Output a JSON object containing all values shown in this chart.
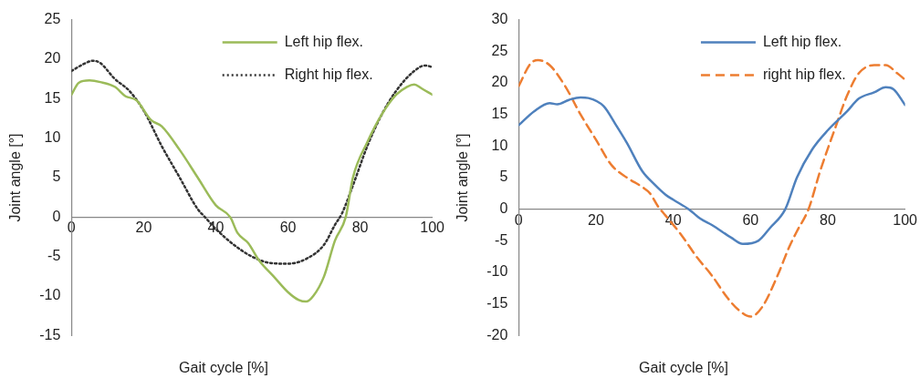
{
  "chart_data": [
    {
      "type": "line",
      "xlabel": "Gait cycle [%]",
      "ylabel": "Joint angle [°]",
      "xlim": [
        0,
        100
      ],
      "xticks": [
        0,
        20,
        40,
        60,
        80,
        100
      ],
      "ylim": [
        -15,
        25
      ],
      "yticks": [
        -15,
        -10,
        -5,
        0,
        5,
        10,
        15,
        20,
        25
      ],
      "legend": "top right",
      "marker": "none",
      "series": [
        {
          "name": "Left hip flex.",
          "color": "#9bbb59",
          "line_style": "solid",
          "x": [
            0,
            2,
            5,
            8,
            12,
            15,
            18,
            22,
            25,
            30,
            35,
            40,
            44,
            46,
            49,
            52,
            56,
            60,
            63,
            65,
            67,
            70,
            73,
            76,
            78,
            82,
            86,
            90,
            93,
            95,
            97,
            100
          ],
          "values": [
            15.5,
            17,
            17.3,
            17.1,
            16.5,
            15.3,
            14.8,
            12.3,
            11.5,
            8.5,
            5,
            1.5,
            0,
            -2,
            -3.3,
            -5.5,
            -7.5,
            -9.5,
            -10.5,
            -10.7,
            -10,
            -7.5,
            -3,
            0,
            5,
            9.5,
            13,
            15.5,
            16.5,
            16.8,
            16.3,
            15.5
          ]
        },
        {
          "name": "Right hip flex.",
          "color": "#333333",
          "line_style": "dotted",
          "x": [
            0,
            3,
            6,
            8,
            12,
            16,
            20,
            25,
            30,
            35,
            37,
            40,
            45,
            50,
            55,
            60,
            65,
            70,
            73,
            75,
            78,
            82,
            86,
            90,
            95,
            98,
            100
          ],
          "values": [
            18.5,
            19.3,
            19.8,
            19.5,
            17.5,
            16,
            13.5,
            9,
            5,
            1,
            0,
            -1.5,
            -3.5,
            -5,
            -5.8,
            -5.9,
            -5.3,
            -3.5,
            -1,
            0.5,
            4,
            9,
            13,
            16,
            18.5,
            19.2,
            19
          ]
        }
      ]
    },
    {
      "type": "line",
      "xlabel": "Gait cycle [%]",
      "ylabel": "Joint angle [°]",
      "xlim": [
        0,
        100
      ],
      "xticks": [
        0,
        20,
        40,
        60,
        80,
        100
      ],
      "ylim": [
        -20,
        30
      ],
      "yticks": [
        -20,
        -15,
        -10,
        -5,
        0,
        5,
        10,
        15,
        20,
        25,
        30
      ],
      "legend": "top right",
      "marker": "none",
      "series": [
        {
          "name": "Left hip flex.",
          "color": "#4f81bd",
          "line_style": "solid",
          "x": [
            0,
            4,
            8,
            10,
            13,
            16,
            18,
            22,
            25,
            28,
            32,
            35,
            38,
            40,
            44,
            47,
            50,
            55,
            58,
            62,
            65,
            69,
            72,
            76,
            80,
            85,
            88,
            92,
            95,
            97,
            100
          ],
          "values": [
            13.3,
            15.5,
            16.8,
            16.6,
            17.3,
            17.7,
            17.6,
            16.3,
            13.5,
            10.5,
            6,
            4,
            2.3,
            1.5,
            0,
            -1.5,
            -2.5,
            -4.5,
            -5.5,
            -5,
            -3,
            0,
            5,
            9.5,
            12.5,
            15.5,
            17.5,
            18.5,
            19.3,
            19,
            16.5
          ]
        },
        {
          "name": "right hip flex.",
          "color": "#ed7d31",
          "line_style": "dashed",
          "x": [
            0,
            3,
            5,
            8,
            12,
            16,
            20,
            24,
            28,
            32,
            34,
            36,
            38,
            42,
            46,
            50,
            54,
            57,
            60,
            63,
            67,
            70,
            72,
            75,
            78,
            82,
            85,
            88,
            92,
            95,
            98,
            100
          ],
          "values": [
            19.5,
            23,
            23.6,
            22.8,
            19.5,
            15,
            11,
            7,
            5,
            3.5,
            2.5,
            0.5,
            -1,
            -4,
            -7.5,
            -10.5,
            -14,
            -16,
            -17,
            -15.5,
            -10.5,
            -6,
            -3.5,
            0,
            6,
            13,
            18,
            21.5,
            22.8,
            22.8,
            21.5,
            20.5
          ]
        }
      ]
    }
  ]
}
